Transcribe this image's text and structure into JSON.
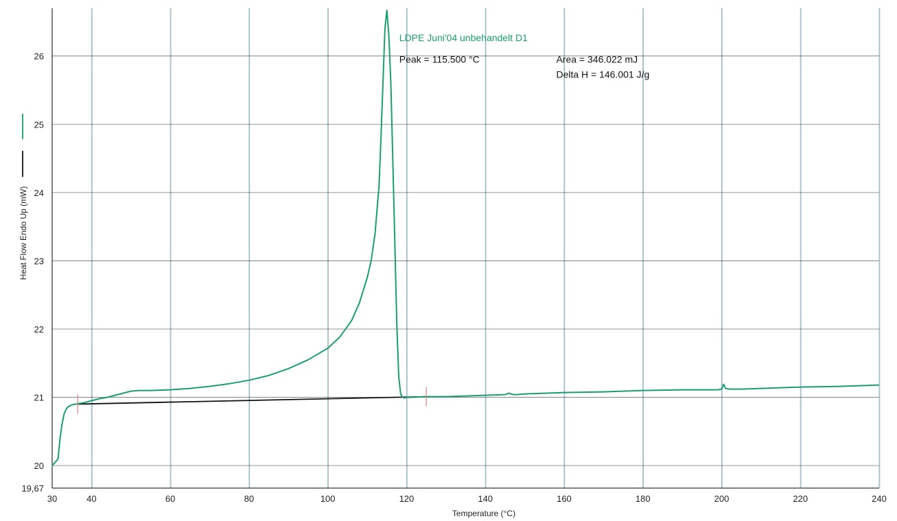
{
  "chart_data": {
    "type": "line",
    "xlabel": "Temperature (°C)",
    "ylabel": "Heat Flow Endo Up (mW)",
    "xlim": [
      30,
      240
    ],
    "ylim": [
      19.67,
      26.7
    ],
    "x_ticks": [
      30,
      40,
      60,
      80,
      100,
      120,
      140,
      160,
      180,
      200,
      220,
      240
    ],
    "y_ticks": [
      19.67,
      20,
      21,
      22,
      23,
      24,
      25,
      26
    ],
    "x_tick_labels": [
      "30",
      "40",
      "60",
      "80",
      "100",
      "120",
      "140",
      "160",
      "180",
      "200",
      "220",
      "240"
    ],
    "y_tick_labels": [
      "19,67",
      "20",
      "21",
      "22",
      "23",
      "24",
      "25",
      "26"
    ],
    "grid": true,
    "colors": {
      "sample": "#1a9e6e",
      "baseline": "#111111",
      "grid": "#000000",
      "grid_faint": "#7fb7c4",
      "marker": "#d98080"
    },
    "series": [
      {
        "name": "LDPE Juni'04 unbehandelt D1",
        "color": "#1a9e6e",
        "x": [
          30,
          30.8,
          31.5,
          32,
          32.5,
          33,
          33.5,
          34,
          35,
          36,
          38,
          40,
          42,
          44,
          46,
          48,
          50,
          52,
          55,
          60,
          65,
          70,
          75,
          80,
          85,
          90,
          95,
          100,
          103,
          106,
          108,
          110,
          111,
          112,
          113,
          113.5,
          114,
          114.5,
          115,
          115.5,
          116,
          116.5,
          117,
          117.5,
          118,
          118.5,
          119,
          119.5,
          120,
          121,
          125,
          130,
          140,
          145,
          146,
          147,
          148,
          150,
          160,
          170,
          180,
          190,
          195,
          199,
          200,
          200.5,
          201,
          202,
          205,
          210,
          220,
          230,
          240
        ],
        "y": [
          20.0,
          20.05,
          20.1,
          20.4,
          20.6,
          20.75,
          20.82,
          20.86,
          20.89,
          20.9,
          20.92,
          20.95,
          20.98,
          21.0,
          21.03,
          21.06,
          21.09,
          21.1,
          21.1,
          21.11,
          21.13,
          21.16,
          21.2,
          21.25,
          21.32,
          21.42,
          21.55,
          21.72,
          21.88,
          22.12,
          22.38,
          22.75,
          23.0,
          23.4,
          24.1,
          24.8,
          25.6,
          26.4,
          26.67,
          26.3,
          25.6,
          24.5,
          23.3,
          22.1,
          21.3,
          21.05,
          21.0,
          20.99,
          21.0,
          21.0,
          21.01,
          21.01,
          21.03,
          21.04,
          21.06,
          21.04,
          21.04,
          21.05,
          21.07,
          21.08,
          21.1,
          21.11,
          21.11,
          21.11,
          21.12,
          21.19,
          21.13,
          21.12,
          21.12,
          21.13,
          21.15,
          21.16,
          21.18
        ]
      },
      {
        "name": "baseline",
        "color": "#111111",
        "x": [
          36.5,
          125
        ],
        "y": [
          20.9,
          21.01
        ]
      }
    ],
    "markers_x": [
      36.5,
      125
    ],
    "annotations": [
      {
        "text": "LDPE Juni'04 unbehandelt D1",
        "x": 115,
        "y": 26.22
      },
      {
        "text": "Peak = 115.500 °C",
        "x": 115,
        "y": 25.9
      },
      {
        "text": "Area = 346.022 mJ",
        "x": 158,
        "y": 25.9
      },
      {
        "text": "Delta H = 146.001 J/g",
        "x": 158,
        "y": 25.68
      }
    ]
  }
}
